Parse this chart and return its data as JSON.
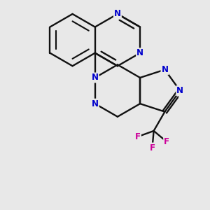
{
  "bg": "#e8e8e8",
  "bc": "#111111",
  "nc": "#0000cc",
  "fc": "#cc0099",
  "bw": 1.7,
  "fs": 8.5,
  "dpi": 100,
  "figsize": [
    3.0,
    3.0
  ],
  "xlim": [
    -1.6,
    1.8
  ],
  "ylim": [
    -3.2,
    1.6
  ]
}
